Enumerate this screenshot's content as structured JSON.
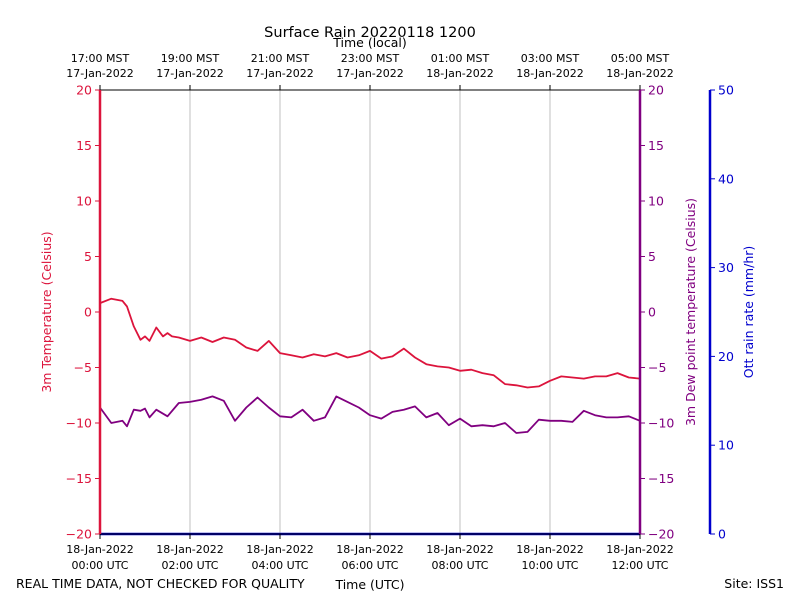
{
  "chart_data": {
    "type": "line",
    "title": "Surface Rain 20220118 1200",
    "x_top_label": "Time (local)",
    "x_bottom_label": "Time (UTC)",
    "ylabel_left": "3m Temperature (Celsius)",
    "ylabel_right_inner": "3m Dew point temperature (Celsius)",
    "ylabel_right_outer": "Ott rain rate (mm/hr)",
    "y_left_range": [
      -20,
      20
    ],
    "y_left_ticks": [
      "20",
      "15",
      "10",
      "5",
      "0",
      "−5",
      "−10",
      "−15",
      "−20"
    ],
    "y_right_outer_range": [
      0,
      50
    ],
    "y_right_outer_ticks": [
      "50",
      "40",
      "30",
      "20",
      "10",
      "0"
    ],
    "x_range_hours": [
      0,
      12
    ],
    "x_bottom_ticks": [
      {
        "line1": "18-Jan-2022",
        "line2": "00:00 UTC"
      },
      {
        "line1": "18-Jan-2022",
        "line2": "02:00 UTC"
      },
      {
        "line1": "18-Jan-2022",
        "line2": "04:00 UTC"
      },
      {
        "line1": "18-Jan-2022",
        "line2": "06:00 UTC"
      },
      {
        "line1": "18-Jan-2022",
        "line2": "08:00 UTC"
      },
      {
        "line1": "18-Jan-2022",
        "line2": "10:00 UTC"
      },
      {
        "line1": "18-Jan-2022",
        "line2": "12:00 UTC"
      }
    ],
    "x_top_ticks": [
      {
        "line1": "17:00 MST",
        "line2": "17-Jan-2022"
      },
      {
        "line1": "19:00 MST",
        "line2": "17-Jan-2022"
      },
      {
        "line1": "21:00 MST",
        "line2": "17-Jan-2022"
      },
      {
        "line1": "23:00 MST",
        "line2": "17-Jan-2022"
      },
      {
        "line1": "01:00 MST",
        "line2": "18-Jan-2022"
      },
      {
        "line1": "03:00 MST",
        "line2": "18-Jan-2022"
      },
      {
        "line1": "05:00 MST",
        "line2": "18-Jan-2022"
      }
    ],
    "grid": "vertical",
    "colors": {
      "temperature": "#dc143c",
      "dewpoint": "#800080",
      "rain": "#0000cd"
    },
    "series": [
      {
        "key": "temperature",
        "x_hours": [
          0,
          0.25,
          0.5,
          0.6,
          0.75,
          0.9,
          1.0,
          1.1,
          1.25,
          1.4,
          1.5,
          1.6,
          1.75,
          2.0,
          2.25,
          2.5,
          2.75,
          3.0,
          3.25,
          3.5,
          3.75,
          4.0,
          4.25,
          4.5,
          4.75,
          5.0,
          5.25,
          5.5,
          5.75,
          6.0,
          6.25,
          6.5,
          6.75,
          7.0,
          7.25,
          7.5,
          7.75,
          8.0,
          8.25,
          8.5,
          8.75,
          9.0,
          9.25,
          9.5,
          9.75,
          10.0,
          10.25,
          10.5,
          10.75,
          11.0,
          11.25,
          11.5,
          11.75,
          12.0
        ],
        "values": [
          0.8,
          1.2,
          1.0,
          0.5,
          -1.3,
          -2.5,
          -2.2,
          -2.6,
          -1.4,
          -2.2,
          -1.9,
          -2.2,
          -2.3,
          -2.6,
          -2.3,
          -2.7,
          -2.3,
          -2.5,
          -3.2,
          -3.5,
          -2.6,
          -3.7,
          -3.9,
          -4.1,
          -3.8,
          -4.0,
          -3.7,
          -4.1,
          -3.9,
          -3.5,
          -4.2,
          -4.0,
          -3.3,
          -4.1,
          -4.7,
          -4.9,
          -5.0,
          -5.3,
          -5.2,
          -5.5,
          -5.7,
          -6.5,
          -6.6,
          -6.8,
          -6.7,
          -6.2,
          -5.8,
          -5.9,
          -6.0,
          -5.8,
          -5.8,
          -5.5,
          -5.9,
          -6.0
        ]
      },
      {
        "key": "dewpoint",
        "x_hours": [
          0,
          0.25,
          0.5,
          0.6,
          0.75,
          0.9,
          1.0,
          1.1,
          1.25,
          1.5,
          1.75,
          2.0,
          2.25,
          2.5,
          2.75,
          3.0,
          3.25,
          3.5,
          3.75,
          4.0,
          4.25,
          4.5,
          4.75,
          5.0,
          5.25,
          5.5,
          5.75,
          6.0,
          6.25,
          6.5,
          6.75,
          7.0,
          7.25,
          7.5,
          7.75,
          8.0,
          8.25,
          8.5,
          8.75,
          9.0,
          9.25,
          9.5,
          9.75,
          10.0,
          10.25,
          10.5,
          10.75,
          11.0,
          11.25,
          11.5,
          11.75,
          12.0
        ],
        "values": [
          -8.6,
          -10.0,
          -9.8,
          -10.3,
          -8.8,
          -8.9,
          -8.7,
          -9.5,
          -8.8,
          -9.4,
          -8.2,
          -8.1,
          -7.9,
          -7.6,
          -8.0,
          -9.8,
          -8.6,
          -7.7,
          -8.6,
          -9.4,
          -9.5,
          -8.8,
          -9.8,
          -9.5,
          -7.6,
          -8.1,
          -8.6,
          -9.3,
          -9.6,
          -9.0,
          -8.8,
          -8.5,
          -9.5,
          -9.1,
          -10.2,
          -9.6,
          -10.3,
          -10.2,
          -10.3,
          -10.0,
          -10.9,
          -10.8,
          -9.7,
          -9.8,
          -9.8,
          -9.9,
          -8.9,
          -9.3,
          -9.5,
          -9.5,
          -9.4,
          -9.8
        ]
      },
      {
        "key": "rain",
        "x_hours": [
          0,
          12
        ],
        "values": [
          0,
          0
        ]
      }
    ]
  },
  "footer": {
    "disclaimer": "REAL TIME DATA, NOT CHECKED FOR QUALITY",
    "site": "Site: ISS1"
  }
}
